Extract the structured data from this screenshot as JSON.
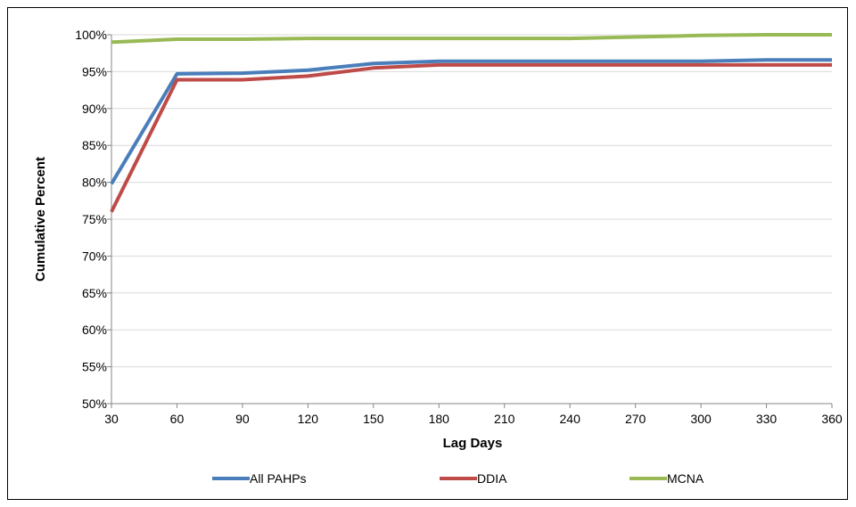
{
  "chart_data": {
    "type": "line",
    "xlabel": "Lag Days",
    "ylabel": "Cumulative Percent",
    "x": [
      30,
      60,
      90,
      120,
      150,
      180,
      210,
      240,
      270,
      300,
      330,
      360
    ],
    "xlim": [
      30,
      360
    ],
    "ylim": [
      50,
      100
    ],
    "yticks": [
      50,
      55,
      60,
      65,
      70,
      75,
      80,
      85,
      90,
      95,
      100
    ],
    "ytick_labels": [
      "50%",
      "55%",
      "60%",
      "65%",
      "70%",
      "75%",
      "80%",
      "85%",
      "90%",
      "95%",
      "100%"
    ],
    "xtick_labels": [
      "30",
      "60",
      "90",
      "120",
      "150",
      "180",
      "210",
      "240",
      "270",
      "300",
      "330",
      "360"
    ],
    "grid": "horizontal",
    "legend_position": "bottom",
    "series": [
      {
        "name": "All PAHPs",
        "color": "#4a7ebb",
        "values": [
          79.8,
          94.7,
          94.8,
          95.2,
          96.1,
          96.4,
          96.4,
          96.4,
          96.4,
          96.4,
          96.6,
          96.6
        ]
      },
      {
        "name": "DDIA",
        "color": "#be4b48",
        "values": [
          76.0,
          93.9,
          93.9,
          94.4,
          95.5,
          95.9,
          95.9,
          95.9,
          95.9,
          95.9,
          95.9,
          95.9
        ]
      },
      {
        "name": "MCNA",
        "color": "#98b954",
        "values": [
          99.0,
          99.4,
          99.4,
          99.5,
          99.5,
          99.5,
          99.5,
          99.5,
          99.7,
          99.9,
          100.0,
          100.0
        ]
      }
    ]
  }
}
